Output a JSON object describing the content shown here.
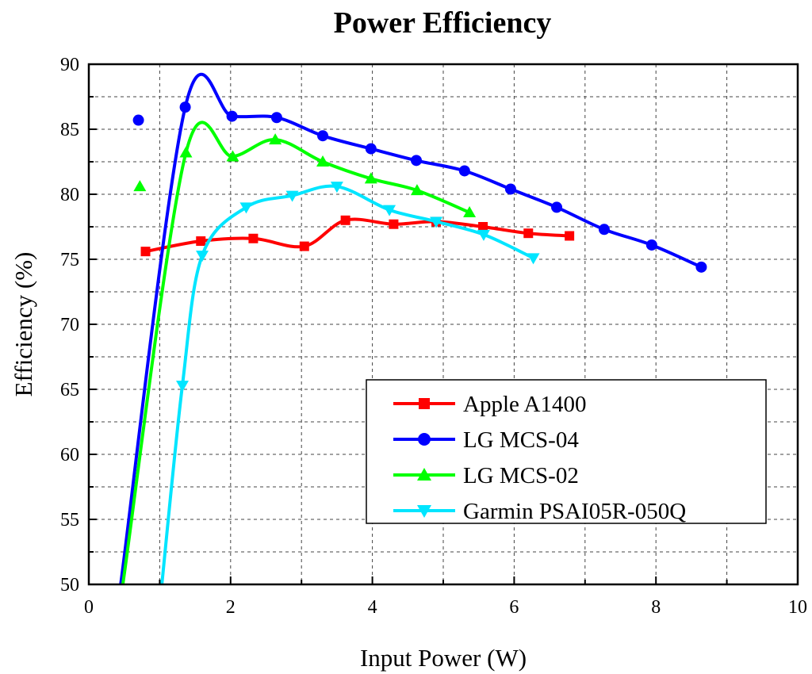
{
  "chart_data": {
    "type": "line",
    "title": "Power Efficiency",
    "xlabel": "Input Power (W)",
    "ylabel": "Efficiency (%)",
    "xlim": [
      0,
      10
    ],
    "ylim": [
      50,
      90
    ],
    "xticks": [
      0,
      2,
      4,
      6,
      8,
      10
    ],
    "yticks": [
      50,
      55,
      60,
      65,
      70,
      75,
      80,
      85,
      90
    ],
    "grid": true,
    "legend_position": "bottom-right",
    "series": [
      {
        "name": "Apple A1400",
        "color": "#ff0000",
        "marker": "square",
        "points": [
          [
            0.8,
            75.6
          ],
          [
            1.58,
            76.4
          ],
          [
            2.32,
            76.6
          ],
          [
            3.04,
            76.0
          ],
          [
            3.62,
            78.0
          ],
          [
            4.3,
            77.7
          ],
          [
            4.9,
            77.9
          ],
          [
            5.56,
            77.5
          ],
          [
            6.2,
            77.0
          ],
          [
            6.78,
            76.8
          ]
        ]
      },
      {
        "name": "LG MCS-04",
        "color": "#0000ff",
        "marker": "circle",
        "points": [
          [
            0.7,
            85.7
          ],
          [
            1.36,
            86.7
          ],
          [
            2.02,
            86.0
          ],
          [
            2.65,
            85.9
          ],
          [
            3.3,
            84.5
          ],
          [
            3.98,
            83.5
          ],
          [
            4.62,
            82.6
          ],
          [
            5.3,
            81.8
          ],
          [
            5.95,
            80.4
          ],
          [
            6.6,
            79.0
          ],
          [
            7.27,
            77.3
          ],
          [
            7.94,
            76.1
          ],
          [
            8.64,
            74.4
          ]
        ],
        "fit_start": [
          0.45,
          50.0
        ]
      },
      {
        "name": "LG MCS-02",
        "color": "#00ff00",
        "marker": "triangle-up",
        "points": [
          [
            0.72,
            80.6
          ],
          [
            1.37,
            83.2
          ],
          [
            2.03,
            82.9
          ],
          [
            2.63,
            84.2
          ],
          [
            3.3,
            82.5
          ],
          [
            3.98,
            81.2
          ],
          [
            4.63,
            80.3
          ],
          [
            5.37,
            78.6
          ]
        ],
        "fit_start": [
          0.48,
          50.0
        ]
      },
      {
        "name": "Garmin PSAI05R-050Q",
        "color": "#00e5ff",
        "marker": "triangle-down",
        "points": [
          [
            1.32,
            65.3
          ],
          [
            1.6,
            75.3
          ],
          [
            2.22,
            79.0
          ],
          [
            2.87,
            79.9
          ],
          [
            3.5,
            80.6
          ],
          [
            4.24,
            78.8
          ],
          [
            4.9,
            77.9
          ],
          [
            5.57,
            76.9
          ],
          [
            6.27,
            75.1
          ]
        ],
        "fit_start": [
          1.03,
          50.0
        ]
      }
    ]
  }
}
